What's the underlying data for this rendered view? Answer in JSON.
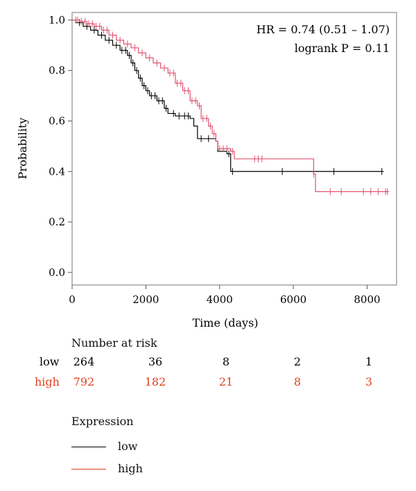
{
  "chart_data": {
    "type": "line",
    "xlabel": "Time (days)",
    "ylabel": "Probability",
    "xlim": [
      0,
      8800
    ],
    "ylim": [
      -0.05,
      1.03
    ],
    "x_ticks": [
      0,
      2000,
      4000,
      6000,
      8000
    ],
    "y_ticks": [
      0.0,
      0.2,
      0.4,
      0.6,
      0.8,
      1.0
    ],
    "y_tick_labels": [
      "0.0",
      "0.2",
      "0.4",
      "0.6",
      "0.8",
      "1.0"
    ],
    "grid": false,
    "annotations": [
      "HR = 0.74 (0.51 – 1.07)",
      "logrank P = 0.11"
    ],
    "series": [
      {
        "name": "low",
        "color": "#000000",
        "points": [
          [
            0,
            1.0
          ],
          [
            100,
            0.99
          ],
          [
            300,
            0.975
          ],
          [
            500,
            0.96
          ],
          [
            700,
            0.94
          ],
          [
            900,
            0.92
          ],
          [
            1100,
            0.9
          ],
          [
            1300,
            0.88
          ],
          [
            1500,
            0.86
          ],
          [
            1600,
            0.83
          ],
          [
            1700,
            0.8
          ],
          [
            1800,
            0.77
          ],
          [
            1900,
            0.74
          ],
          [
            2000,
            0.72
          ],
          [
            2100,
            0.7
          ],
          [
            2300,
            0.68
          ],
          [
            2500,
            0.65
          ],
          [
            2600,
            0.63
          ],
          [
            2800,
            0.62
          ],
          [
            3200,
            0.61
          ],
          [
            3300,
            0.58
          ],
          [
            3400,
            0.53
          ],
          [
            3900,
            0.52
          ],
          [
            3950,
            0.48
          ],
          [
            4200,
            0.47
          ],
          [
            4300,
            0.4
          ],
          [
            8450,
            0.4
          ]
        ],
        "censor_x": [
          200,
          400,
          600,
          800,
          1000,
          1200,
          1350,
          1450,
          1550,
          1650,
          1750,
          1850,
          1950,
          2050,
          2150,
          2250,
          2350,
          2450,
          2550,
          2750,
          2900,
          3050,
          3150,
          3500,
          3700,
          4250,
          4350,
          5700,
          7100,
          8400
        ]
      },
      {
        "name": "high",
        "color": "#e0506e",
        "points": [
          [
            0,
            1.0
          ],
          [
            200,
            0.995
          ],
          [
            400,
            0.985
          ],
          [
            600,
            0.975
          ],
          [
            800,
            0.96
          ],
          [
            1000,
            0.94
          ],
          [
            1200,
            0.92
          ],
          [
            1400,
            0.905
          ],
          [
            1600,
            0.89
          ],
          [
            1800,
            0.87
          ],
          [
            2000,
            0.85
          ],
          [
            2200,
            0.83
          ],
          [
            2400,
            0.81
          ],
          [
            2600,
            0.79
          ],
          [
            2800,
            0.75
          ],
          [
            3000,
            0.72
          ],
          [
            3200,
            0.68
          ],
          [
            3400,
            0.66
          ],
          [
            3500,
            0.61
          ],
          [
            3700,
            0.58
          ],
          [
            3800,
            0.55
          ],
          [
            3900,
            0.52
          ],
          [
            3950,
            0.49
          ],
          [
            4300,
            0.48
          ],
          [
            4400,
            0.45
          ],
          [
            6500,
            0.45
          ],
          [
            6550,
            0.39
          ],
          [
            6600,
            0.32
          ],
          [
            8600,
            0.32
          ]
        ],
        "censor_x": [
          100,
          150,
          250,
          350,
          450,
          550,
          650,
          750,
          850,
          950,
          1100,
          1300,
          1500,
          1700,
          1900,
          2100,
          2300,
          2500,
          2650,
          2750,
          2850,
          2950,
          3050,
          3150,
          3250,
          3350,
          3450,
          3550,
          3650,
          3750,
          3850,
          4000,
          4100,
          4200,
          4350,
          4950,
          5050,
          5150,
          6550,
          7000,
          7300,
          7900,
          8100,
          8300,
          8500,
          8550
        ]
      }
    ]
  },
  "risk_table": {
    "title": "Number at risk",
    "rows": [
      {
        "label": "low",
        "color": "#000000",
        "values": [
          "264",
          "36",
          "8",
          "2",
          "1"
        ]
      },
      {
        "label": "high",
        "color": "#e0401e",
        "values": [
          "792",
          "182",
          "21",
          "8",
          "3"
        ]
      }
    ]
  },
  "legend": {
    "title": "Expression",
    "items": [
      {
        "label": "low",
        "color": "#000000"
      },
      {
        "label": "high",
        "color": "#e0401e"
      }
    ]
  }
}
